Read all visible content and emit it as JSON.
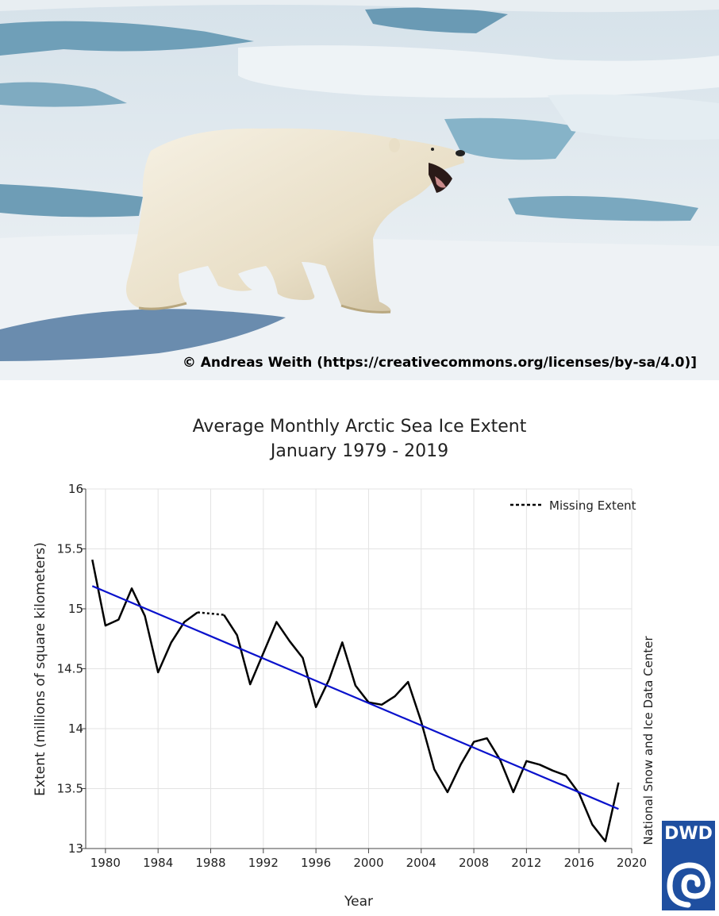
{
  "photo": {
    "subject": "polar-bear-on-sea-ice",
    "credit": "© Andreas Weith (https://creativecommons.org/licenses/by-sa/4.0)]"
  },
  "chart_data": {
    "type": "line",
    "title": "Average Monthly Arctic Sea Ice Extent",
    "subtitle": "January 1979 - 2019",
    "xlabel": "Year",
    "ylabel": "Extent (millions of square kilometers)",
    "xlim": [
      1978.5,
      2020
    ],
    "ylim": [
      13,
      16
    ],
    "xticks": [
      1980,
      1984,
      1988,
      1992,
      1996,
      2000,
      2004,
      2008,
      2012,
      2016,
      2020
    ],
    "yticks": [
      13,
      13.5,
      14,
      14.5,
      15,
      15.5,
      16
    ],
    "grid": true,
    "legend": {
      "label": "Missing Extent",
      "placement": "top-right"
    },
    "source": "National Snow and Ice Data Center",
    "series": [
      {
        "style": "solid",
        "color": "#000000",
        "x": [
          1979,
          1980,
          1981,
          1982,
          1983,
          1984,
          1985,
          1986,
          1987
        ],
        "y": [
          15.41,
          14.86,
          14.91,
          15.17,
          14.94,
          14.47,
          14.72,
          14.89,
          14.97
        ]
      },
      {
        "name": "Missing Extent",
        "style": "dotted",
        "color": "#000000",
        "x": [
          1987,
          1988,
          1989
        ],
        "y": [
          14.97,
          14.96,
          14.95
        ]
      },
      {
        "style": "solid",
        "color": "#000000",
        "x": [
          1989,
          1990,
          1991,
          1992,
          1993,
          1994,
          1995,
          1996,
          1997,
          1998,
          1999,
          2000,
          2001,
          2002,
          2003,
          2004,
          2005,
          2006,
          2007,
          2008,
          2009,
          2010,
          2011,
          2012,
          2013,
          2014,
          2015,
          2016,
          2017,
          2018,
          2019
        ],
        "y": [
          14.95,
          14.78,
          14.37,
          14.63,
          14.89,
          14.73,
          14.59,
          14.18,
          14.41,
          14.72,
          14.36,
          14.22,
          14.2,
          14.27,
          14.39,
          14.06,
          13.66,
          13.47,
          13.7,
          13.89,
          13.92,
          13.74,
          13.47,
          13.73,
          13.7,
          13.65,
          13.61,
          13.46,
          13.2,
          13.06,
          13.55
        ]
      },
      {
        "style": "trend",
        "color": "#0a12cc",
        "x": [
          1979,
          2019
        ],
        "y": [
          15.19,
          13.33
        ]
      }
    ]
  },
  "logo": {
    "text": "DWD"
  }
}
